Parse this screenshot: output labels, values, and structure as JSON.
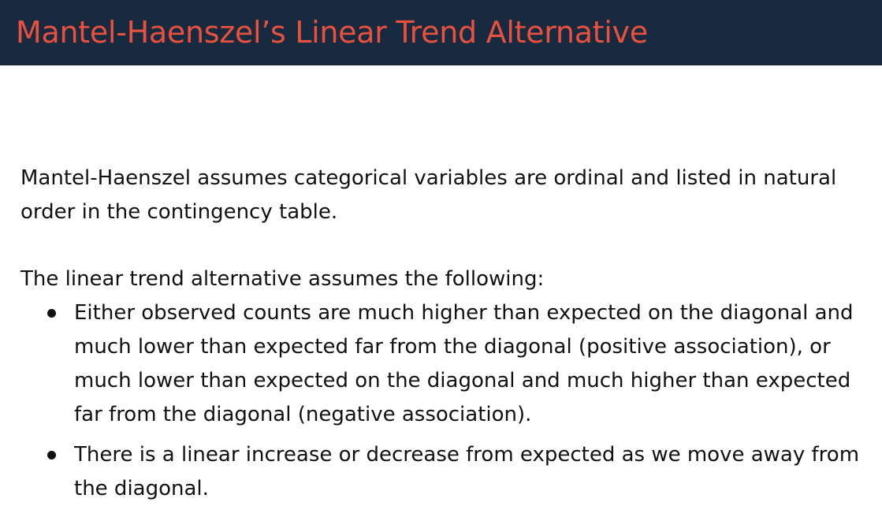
{
  "slide": {
    "title": "Mantel-Haenszel’s Linear Trend Alternative",
    "paragraph1": "Mantel-Haenszel assumes categorical variables are ordinal and listed in natural order in the contingency table.",
    "paragraph2": "The linear trend alternative assumes the following:",
    "bullets": [
      "Either observed counts are much higher than expected on the diagonal and much lower than expected far from the diagonal (positive association), or much lower than expected on the diagonal and much higher than expected far from the diagonal (negative association).",
      "There is a linear increase or decrease from expected as we move away from the diagonal."
    ]
  },
  "colors": {
    "title_bar_bg": "#172a40",
    "title_text": "#e8513d",
    "body_text": "#111111"
  }
}
